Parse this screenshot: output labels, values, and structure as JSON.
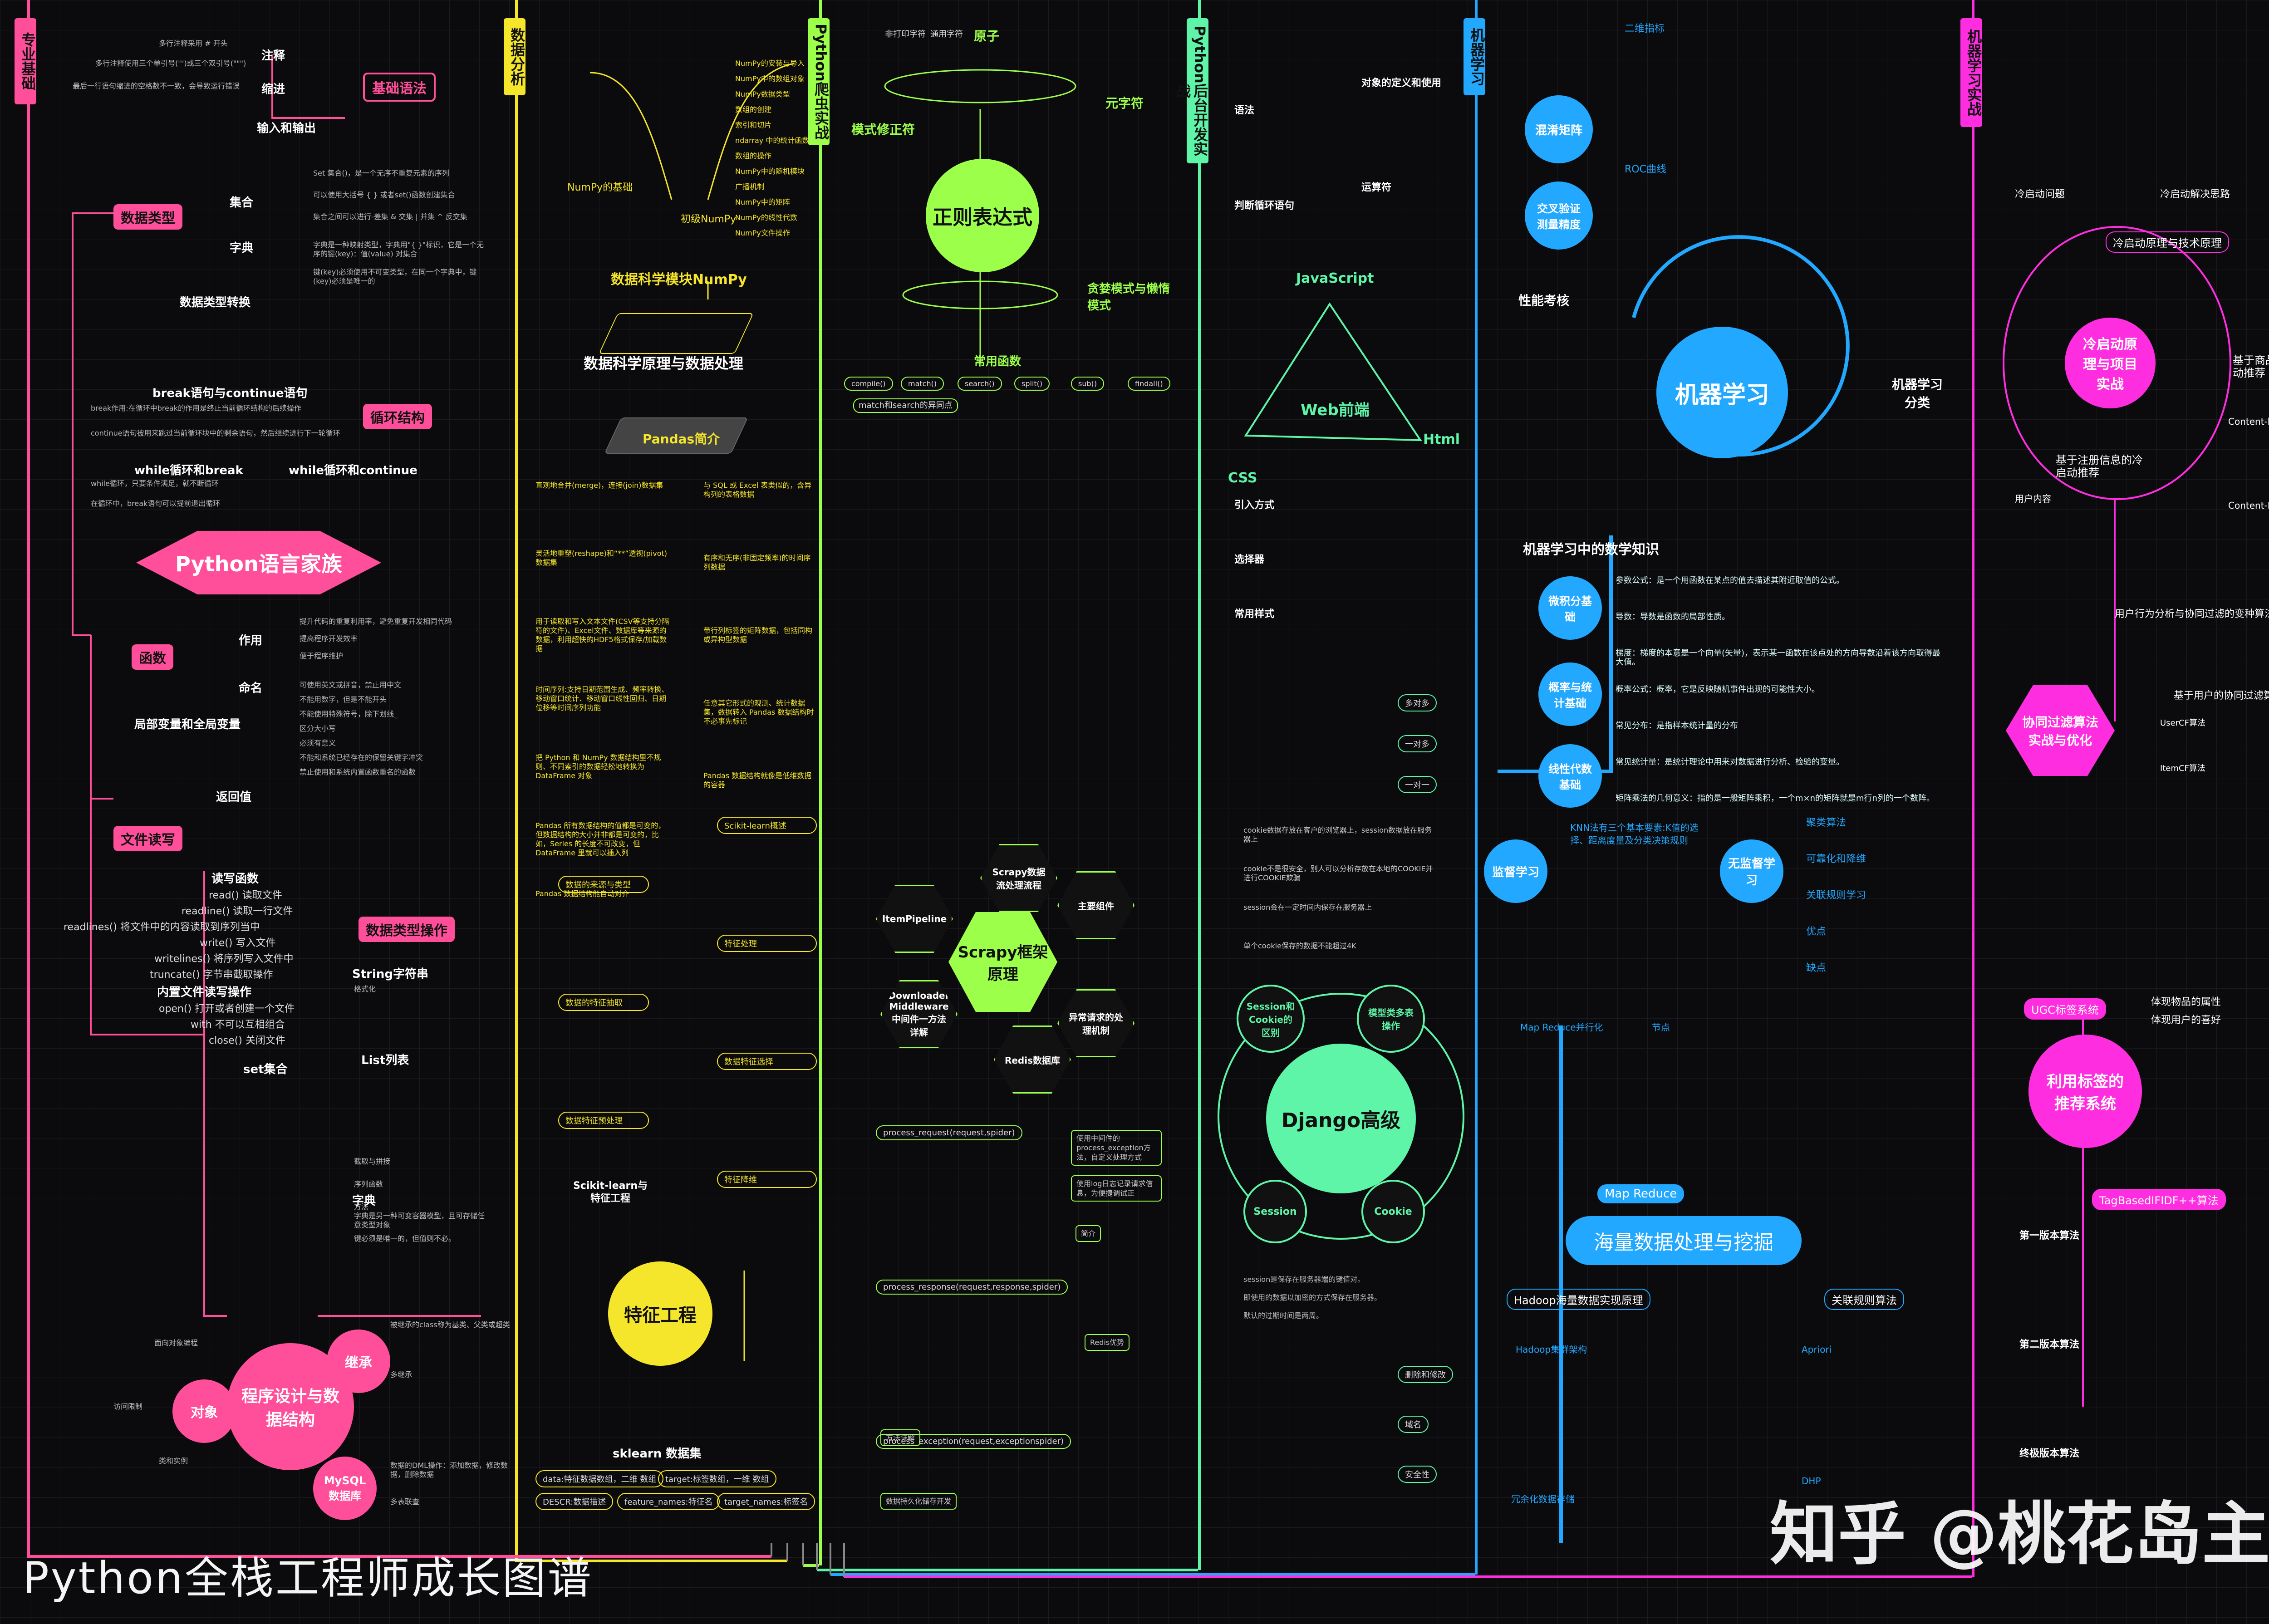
{
  "colors": {
    "pink": "#ff4f9a",
    "yellow": "#f5e52b",
    "green": "#9cff4a",
    "mint": "#5ef5a8",
    "blue": "#22a8ff",
    "magenta": "#ff2de0"
  },
  "sections": [
    {
      "tag": "专业基础"
    },
    {
      "tag": "数据分析"
    },
    {
      "tag": "Python爬虫实战"
    },
    {
      "tag": "Python后台开发实战"
    },
    {
      "tag": "机器学习"
    },
    {
      "tag": "机器学习实战"
    }
  ],
  "s1": {
    "jichu": "基础语法",
    "zhushi": "注释",
    "suojin": "缩进",
    "io": "输入和输出",
    "shujuleixing": "数据类型",
    "jihe": "集合",
    "zidian": "字典",
    "leixingzhuanhuan": "数据类型转换",
    "break": "break语句与continue语句",
    "xunhuan": "循环结构",
    "while": "while循环和break",
    "while2": "while循环和continue",
    "family": "Python语言家族",
    "hanshu": "函数",
    "zuoyong": "作用",
    "mingming": "命名",
    "jubu": "局部变量和全局变量",
    "fanhui": "返回值",
    "wenjian": "文件读写",
    "duqu": "读写函数",
    "caozuo": "数据类型操作",
    "string": "String字符串",
    "list": "List列表",
    "neizhi": "内置文件读写操作",
    "set": "set集合",
    "dict": "字典",
    "oop": "程序设计与数据结构",
    "jicheng": "继承",
    "duixiang": "对象",
    "mysql": "MySQL数据库",
    "notes": [
      "多行注释采用 # 开头",
      "多行注释使用三个单引号(''')或三个双引号(\"\"\")",
      "最后一行语句缩进的空格数不一致，会导致运行错误",
      "Set 集合()，是一个无序不重复元素的序列",
      "可以使用大括号 { } 或者set()函数创建集合",
      "集合之间可以进行-差集 & 交集 | 并集 ^ 反交集",
      "字典是一种映射类型，字典用\"{ }\"标识，它是一个无序的键(key)：值(value) 对集合",
      "键(key)必须使用不可变类型，在同一个字典中，键(key)必须是唯一的",
      "break作用:在循环中break的作用是终止当前循环结构的后续操作",
      "continue语句被用来跳过当前循环块中的剩余语句，然后继续进行下一轮循环",
      "while循环，只要条件满足，就不断循环",
      "在循环中，break语句可以提前退出循环",
      "提升代码的重复利用率，避免重复开发相同代码",
      "提高程序开发效率",
      "便于程序维护",
      "可使用英文或拼音，禁止用中文",
      "不能用数字，但是不能开头",
      "不能使用特殊符号，除下划线_",
      "区分大小写",
      "必须有意义",
      "不能和系统已经存在的保留关键字冲突",
      "禁止使用和系统内置函数重名的函数",
      "read() 读取文件",
      "readline() 读取一行文件",
      "readlines() 将文件中的内容读取到序列当中",
      "write() 写入文件",
      "writelines() 将序列写入文件中",
      "truncate() 字节串截取操作",
      "open() 打开或者创建一个文件",
      "with 不可以互相组合",
      "close() 关闭文件",
      "格式化",
      "截取与拼接",
      "序列函数",
      "方法",
      "字典是另一种可变容器模型，且可存储任意类型对象",
      "键必须是唯一的，但值则不必。",
      "被继承的class称为基类、父类或超类",
      "多继承",
      "面向对象编程",
      "访问限制",
      "类和实例",
      "数据的DML操作：添加数据，修改数据，删除数据",
      "多表联查"
    ]
  },
  "s2": {
    "numpy_hdr": "数据科学模块NumPy",
    "yuanli": "数据科学原理与数据处理",
    "pandas": "Pandas简介",
    "numpy_in": "NumPy的基础",
    "chuji": "初级NumPy",
    "scikit": "Scikit-learn与特征工程",
    "tezheng": "特征工程",
    "sklearn": "sklearn 数据集",
    "numpy_items": [
      "NumPy的安装与导入",
      "NumPy中的数组对象",
      "NumPy数据类型",
      "数组的创建",
      "索引和切片",
      "ndarray 中的统计函数",
      "数组的操作",
      "NumPy中的随机模块",
      "广播机制",
      "NumPy中的矩阵",
      "NumPy的线性代数",
      "NumPy文件操作"
    ],
    "pandas_items": [
      "直观地合并(merge)，连接(join)数据集",
      "灵活地重塑(reshape)和“**”透视(pivot)数据集",
      "用于读取和写入文本文件(CSV等支持分隔符的文件)、Excel文件、数据库等来源的数据，利用超快的HDF5格式保存/加载数据",
      "时间序列:支持日期范围生成、频率转换、移动窗口统计、移动窗口线性回归、日期位移等时间序列功能",
      "把 Python 和 NumPy 数据结构里不规则、不同索引的数据轻松地转换为 DataFrame 对象",
      "Pandas 所有数据结构的值都是可变的，但数据结构的大小并非都是可变的，比如，Series 的长度不可改变，但 DataFrame 里就可以插入列",
      "Pandas 数据结构能自动对齐",
      "与 SQL 或 Excel 表类似的，含异构列的表格数据",
      "有序和无序(非固定频率)的时间序列数据",
      "带行列标签的矩阵数据，包括同构或异构型数据",
      "任意其它形式的观测、统计数据集，数据转入 Pandas 数据结构时不必事先标记",
      "Pandas 数据结构就像是低维数据的容器"
    ],
    "sk_items": [
      "Scikit-learn概述",
      "数据的来源与类型",
      "特征处理",
      "数据的特征抽取",
      "数据特征选择",
      "数据特征预处理",
      "特征降维"
    ],
    "sk_fields": [
      "data:特征数据数组，二维 数组",
      "target:标签数组，一维 数组",
      "DESCR:数据描述",
      "feature_names:特征名",
      "target_names:标签名"
    ]
  },
  "s3": {
    "zhengze": "正则表达式",
    "yuanzi": "原子",
    "yuanzifu": "元字符",
    "moshi": "模式修正符",
    "tanlan": "贪婪模式与懒惰模式",
    "changyong": "常用函数",
    "feidayin": "非打印字符",
    "tongyong": "通用字符",
    "funcs": [
      "compile()",
      "match()",
      "search()",
      "split()",
      "sub()",
      "findall()"
    ],
    "match_note": "match和search的异同点",
    "scrapy": "Scrapy框架原理",
    "hex_items": [
      "Scrapy数据流处理流程",
      "主要组件",
      "ItemPipeline",
      "Downloader Middleware 中间件一方法详解",
      "Redis数据库",
      "异常请求的处理机制"
    ],
    "proc": [
      "process_request(request,spider)",
      "process_response(request,response,spider)",
      "process_exception(request,exceptionspider)"
    ],
    "side": [
      "使用中间件的process_exception方法，自定义处理方式",
      "使用log日志记录请求信息，为便捷调试正",
      "简介",
      "Redis优势",
      "方法详解",
      "数据持久化储存开发"
    ]
  },
  "s4": {
    "web": "Web前端",
    "js": "JavaScript",
    "html": "Html",
    "css": "CSS",
    "django": "Django高级",
    "session_cookie": "Session和Cookie的区别",
    "moxing": "模型类多表操作",
    "session": "Session",
    "cookie": "Cookie",
    "js_items": [
      "语法",
      "判断循环语句",
      "对象的定义和使用",
      "运算符"
    ],
    "html_items": [
      "语法"
    ],
    "css_items": [
      "引入方式",
      "选择器",
      "常用样式"
    ],
    "rel": [
      "多对多",
      "一对多",
      "一对一"
    ],
    "diff": [
      "cookie数据存放在客户的浏览器上，session数据放在服务器上",
      "cookie不是很安全，别人可以分析存放在本地的COOKIE并进行COOKIE欺骗",
      "session会在一定时间内保存在服务器上",
      "单个cookie保存的数据不能超过4K"
    ],
    "ss": [
      "session是保存在服务器端的键值对。",
      "即使用的数据以加密的方式保存在服务器。",
      "默认的过期时间是两周。"
    ],
    "ck": [
      "删除和修改",
      "域名",
      "安全性"
    ]
  },
  "s5": {
    "hunxiao": "混淆矩阵",
    "jiaocha": "交叉验证测量精度",
    "xingneng": "性能考核",
    "ml": "机器学习",
    "fenlei": "机器学习分类",
    "shuxue": "机器学习中的数学知识",
    "weifen": "微积分基础",
    "gailv": "概率与统计基础",
    "xianxing": "线性代数基础",
    "jiandu": "监督学习",
    "wujiandu": "无监督学习",
    "haiiang": "海量数据处理与挖掘",
    "mapreduce": "Map Reduce",
    "hadoop": "Hadoop海量数据实现原理",
    "guanlian": "关联规则算法",
    "er": "二维指标",
    "roc": "ROC曲线",
    "math_notes": [
      "参数公式：是一个用函数在某点的值去描述其附近取值的公式。",
      "导数：导数是函数的局部性质。",
      "梯度：梯度的本意是一个向量(矢量)，表示某一函数在该点处的方向导数沿着该方向取得最大值。",
      "概率公式：概率，它是反映随机事件出现的可能性大小。",
      "常见分布：是指样本统计量的分布",
      "常见统计量：是统计理论中用来对数据进行分析、检验的变量。",
      "矩阵乘法的几何意义：指的是一般矩阵乘积，一个m×n的矩阵就是m行n列的一个数阵。"
    ],
    "knn": "KNN法有三个基本要素:K值的选择、距离度量及分类决策规则",
    "unsup": [
      "聚类算法",
      "可靠化和降维",
      "关联规则学习",
      "优点",
      "缺点"
    ],
    "hd": [
      "Map Reduce并行化",
      "节点",
      "Hadoop集群架构",
      "冗余化数据存储",
      "Apriori",
      "DHP"
    ]
  },
  "s6": {
    "lengqidong": "冷启动原理与技术原理",
    "xiangmu": "冷启动原理与项目实战",
    "jiyu1": "基于商品内容的冷启动推荐",
    "jiyu2": "基于注册信息的冷启动推荐",
    "xietong": "协同过滤算法实战与优化",
    "yonghu": "基于用户的协同过滤算法",
    "biaoqian": "利用标签的推荐系统",
    "ugc": "UGC标签系统",
    "tagbased": "TagBasedIFIDF++算法",
    "cb": "Content-based算法",
    "itemknn": "Content-ItemKNN 算法",
    "yonghuneirong": "用户内容",
    "xingwei": "用户行为分析与协同过滤的变种算法",
    "usercf": "UserCF算法",
    "itemcf": "ItemCF算法",
    "wenti": "冷启动问题",
    "fangan": "冷启动解决思路",
    "tag_items": [
      "体现物品的属性",
      "体现用户的喜好"
    ],
    "bp": [
      "第一版本算法",
      "第二版本算法",
      "终极版本算法"
    ]
  },
  "footer": {
    "title": "Python全栈工程师成长图谱",
    "watermark": "知乎 @桃花岛主"
  }
}
